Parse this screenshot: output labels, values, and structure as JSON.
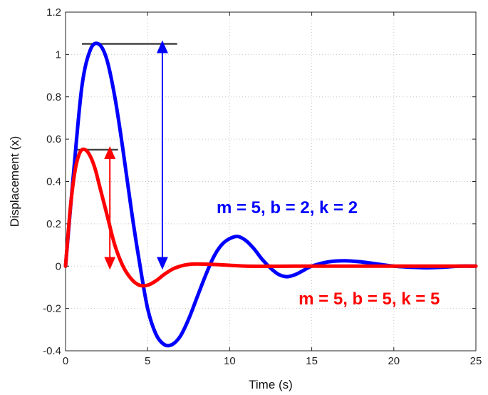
{
  "chart_data": {
    "type": "line",
    "title": "",
    "xlabel": "Time (s)",
    "ylabel": "Displacement (x)",
    "xlim": [
      0,
      25
    ],
    "ylim": [
      -0.4,
      1.2
    ],
    "xticks": [
      0,
      5,
      10,
      15,
      20,
      25
    ],
    "yticks": [
      -0.4,
      -0.2,
      0,
      0.2,
      0.4,
      0.6,
      0.8,
      1,
      1.2
    ],
    "grid": true,
    "series": [
      {
        "color": "#0000ff",
        "x": [
          0,
          0.5,
          1,
          1.5,
          2,
          2.5,
          3,
          3.5,
          4,
          4.5,
          5,
          5.5,
          6,
          6.5,
          7,
          7.5,
          8,
          8.5,
          9,
          9.5,
          10,
          10.5,
          11,
          11.5,
          12,
          12.5,
          13,
          13.5,
          14,
          14.5,
          15,
          16,
          17,
          18,
          19,
          20,
          21,
          22,
          23,
          24,
          25
        ],
        "y": [
          0,
          0.45,
          0.85,
          1.02,
          1.05,
          0.98,
          0.8,
          0.55,
          0.27,
          0.02,
          -0.2,
          -0.32,
          -0.37,
          -0.37,
          -0.33,
          -0.25,
          -0.15,
          -0.05,
          0.04,
          0.1,
          0.13,
          0.14,
          0.12,
          0.08,
          0.03,
          -0.01,
          -0.04,
          -0.05,
          -0.04,
          -0.02,
          0.0,
          0.02,
          0.025,
          0.02,
          0.01,
          0.0,
          -0.005,
          -0.008,
          -0.005,
          0.0,
          0.0
        ]
      },
      {
        "color": "#ff0000",
        "x": [
          0,
          0.3,
          0.6,
          0.9,
          1.2,
          1.5,
          1.8,
          2.1,
          2.5,
          3,
          3.5,
          4,
          4.5,
          5,
          5.5,
          6,
          6.5,
          7,
          7.5,
          8,
          9,
          10,
          11,
          12,
          14,
          16,
          18,
          20,
          22,
          25
        ],
        "y": [
          0,
          0.28,
          0.46,
          0.54,
          0.55,
          0.52,
          0.46,
          0.37,
          0.25,
          0.1,
          0.0,
          -0.06,
          -0.09,
          -0.09,
          -0.07,
          -0.04,
          -0.015,
          0.0,
          0.008,
          0.01,
          0.008,
          0.004,
          0.0,
          -0.001,
          0.0,
          0.0,
          0.0,
          0.0,
          0.0,
          0.0
        ]
      }
    ],
    "annotations": [
      {
        "text": "m = 5, b = 2, k = 2",
        "color": "#0000ff",
        "x": 13.5,
        "y": 0.28
      },
      {
        "text": "m = 5, b = 5, k = 5",
        "color": "#ff0000",
        "x": 18.5,
        "y": -0.15
      }
    ],
    "reference_lines": [
      {
        "color": "#444444",
        "y": 1.05,
        "x_from": 1.0,
        "x_to": 6.8
      },
      {
        "color": "#444444",
        "y": 0.55,
        "x_from": 0.7,
        "x_to": 3.2
      }
    ],
    "arrows": [
      {
        "color": "#0000ff",
        "x": 5.9,
        "y_from": 1.05,
        "y_to": 0.0
      },
      {
        "color": "#ff0000",
        "x": 2.7,
        "y_from": 0.55,
        "y_to": 0.0
      }
    ]
  }
}
